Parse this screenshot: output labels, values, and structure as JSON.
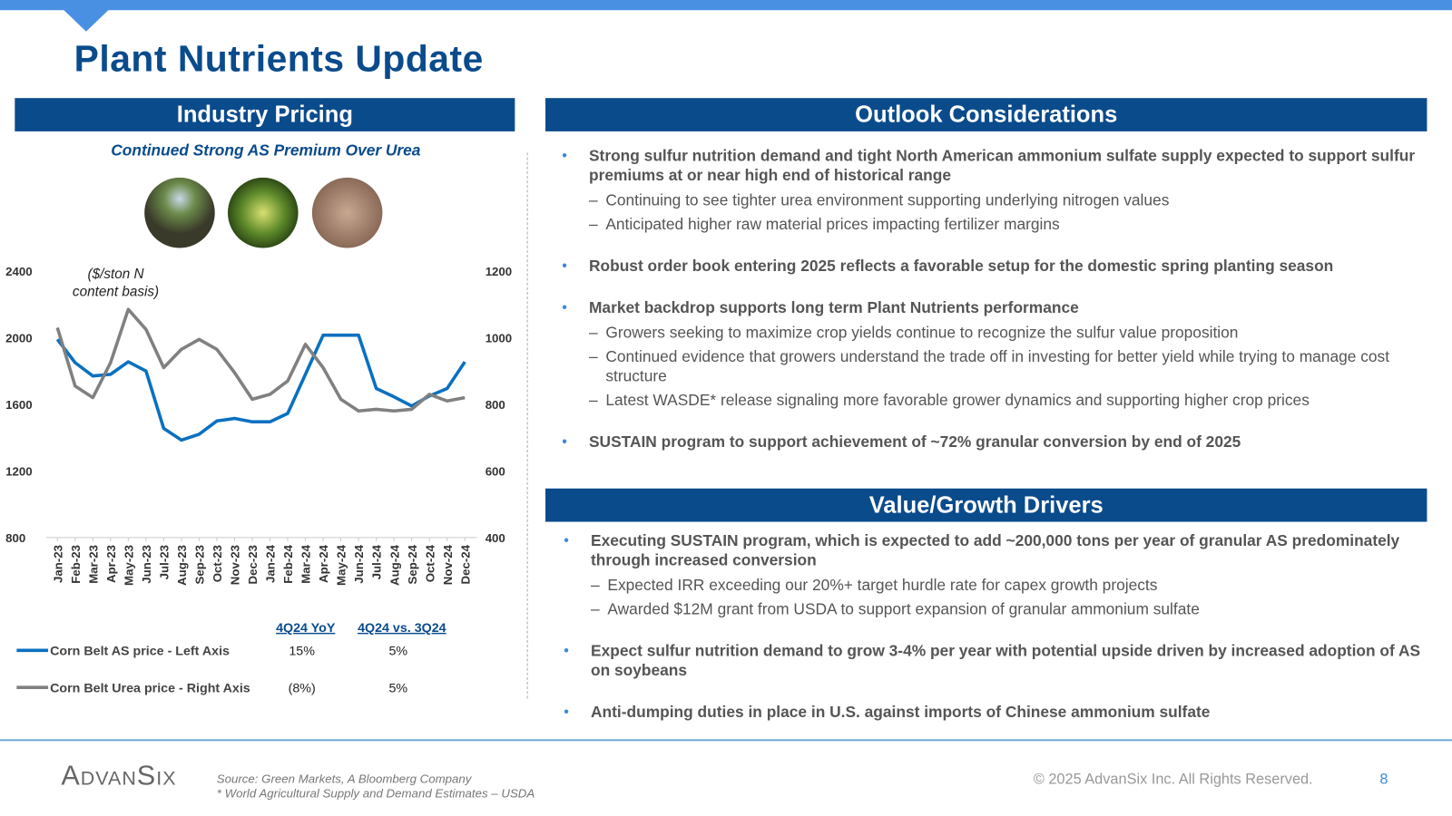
{
  "header": {
    "title": "Plant Nutrients Update"
  },
  "left_panel": {
    "heading": "Industry Pricing"
  },
  "chart_data": {
    "type": "line",
    "title": "Continued Strong AS Premium Over Urea",
    "annotation": [
      "($/ston N",
      "content basis)"
    ],
    "categories": [
      "Jan-23",
      "Feb-23",
      "Mar-23",
      "Apr-23",
      "May-23",
      "Jun-23",
      "Jul-23",
      "Aug-23",
      "Sep-23",
      "Oct-23",
      "Nov-23",
      "Dec-23",
      "Jan-24",
      "Feb-24",
      "Mar-24",
      "Apr-24",
      "May-24",
      "Jun-24",
      "Jul-24",
      "Aug-24",
      "Sep-24",
      "Oct-24",
      "Nov-24",
      "Dec-24"
    ],
    "series": [
      {
        "name": "Corn Belt AS price - Left Axis",
        "color": "#0a70c0",
        "values": [
          1990,
          1850,
          1770,
          1780,
          1855,
          1800,
          1455,
          1385,
          1420,
          1500,
          1515,
          1495,
          1495,
          1545,
          1780,
          2015,
          2015,
          2015,
          1695,
          1645,
          1590,
          1650,
          1695,
          1855
        ]
      },
      {
        "name": "Corn Belt Urea price - Right Axis",
        "color": "#808080",
        "axis": "y2",
        "values": [
          1030,
          855,
          820,
          925,
          1085,
          1025,
          910,
          965,
          995,
          965,
          895,
          815,
          830,
          870,
          980,
          910,
          815,
          780,
          785,
          780,
          785,
          830,
          810,
          820
        ]
      }
    ],
    "ylim": [
      800,
      2400
    ],
    "yticks": [
      800,
      1200,
      1600,
      2000,
      2400
    ],
    "y2lim": [
      400,
      1200
    ],
    "y2ticks": [
      400,
      600,
      800,
      1000,
      1200
    ]
  },
  "summary_table": {
    "columns": [
      "4Q24 YoY",
      "4Q24 vs. 3Q24"
    ],
    "rows": [
      [
        "15%",
        "5%"
      ],
      [
        "(8%)",
        "5%"
      ]
    ]
  },
  "outlook": {
    "heading": "Outlook Considerations",
    "items": [
      {
        "text": "Strong sulfur nutrition demand and tight North American ammonium sulfate supply expected to support sulfur premiums at or near high end of historical range",
        "subitems": [
          "Continuing to see tighter urea environment supporting underlying nitrogen values",
          "Anticipated higher raw material prices impacting fertilizer margins"
        ]
      },
      {
        "text": "Robust order book entering 2025 reflects a favorable setup for the domestic spring planting season",
        "subitems": []
      },
      {
        "text": "Market backdrop supports long term Plant Nutrients performance",
        "subitems": [
          "Growers seeking to maximize crop yields continue to recognize the sulfur value proposition",
          "Continued evidence that growers understand the trade off in investing for better yield while trying to manage cost structure",
          "Latest WASDE* release signaling more favorable grower dynamics and supporting higher crop prices"
        ]
      },
      {
        "text": "SUSTAIN program to support achievement of ~72% granular conversion by end of 2025",
        "subitems": []
      }
    ]
  },
  "drivers": {
    "heading": "Value/Growth Drivers",
    "items": [
      {
        "text": "Executing SUSTAIN program, which is expected to add ~200,000 tons per year of granular AS predominately through increased conversion",
        "subitems": [
          "Expected IRR exceeding our 20%+ target hurdle rate for capex growth projects",
          "Awarded $12M grant from USDA to support expansion of granular ammonium sulfate"
        ]
      },
      {
        "text": "Expect sulfur nutrition demand to grow 3-4% per year with potential upside driven by increased adoption of AS on soybeans",
        "subitems": []
      },
      {
        "text": "Anti-dumping duties in place in U.S. against imports of Chinese ammonium sulfate",
        "subitems": []
      }
    ]
  },
  "footer": {
    "logo": "AdvanSix",
    "source": [
      "Source: Green Markets, A Bloomberg Company",
      "* World Agricultural Supply and Demand Estimates – USDA"
    ],
    "copyright": "© 2025 AdvanSix Inc. All Rights Reserved.",
    "page": "8"
  }
}
